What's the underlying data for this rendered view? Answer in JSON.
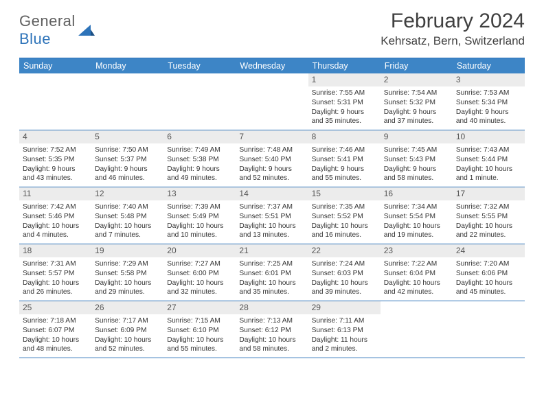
{
  "brand": {
    "part1": "General",
    "part2": "Blue"
  },
  "title": "February 2024",
  "location": "Kehrsatz, Bern, Switzerland",
  "colors": {
    "header_bar": "#3d85c6",
    "rule": "#2d73b9",
    "daynum_bg": "#ececec",
    "text": "#333333"
  },
  "weekdays": [
    "Sunday",
    "Monday",
    "Tuesday",
    "Wednesday",
    "Thursday",
    "Friday",
    "Saturday"
  ],
  "weeks": [
    [
      {
        "n": "",
        "sr": "",
        "ss": "",
        "dl": ""
      },
      {
        "n": "",
        "sr": "",
        "ss": "",
        "dl": ""
      },
      {
        "n": "",
        "sr": "",
        "ss": "",
        "dl": ""
      },
      {
        "n": "",
        "sr": "",
        "ss": "",
        "dl": ""
      },
      {
        "n": "1",
        "sr": "Sunrise: 7:55 AM",
        "ss": "Sunset: 5:31 PM",
        "dl": "Daylight: 9 hours and 35 minutes."
      },
      {
        "n": "2",
        "sr": "Sunrise: 7:54 AM",
        "ss": "Sunset: 5:32 PM",
        "dl": "Daylight: 9 hours and 37 minutes."
      },
      {
        "n": "3",
        "sr": "Sunrise: 7:53 AM",
        "ss": "Sunset: 5:34 PM",
        "dl": "Daylight: 9 hours and 40 minutes."
      }
    ],
    [
      {
        "n": "4",
        "sr": "Sunrise: 7:52 AM",
        "ss": "Sunset: 5:35 PM",
        "dl": "Daylight: 9 hours and 43 minutes."
      },
      {
        "n": "5",
        "sr": "Sunrise: 7:50 AM",
        "ss": "Sunset: 5:37 PM",
        "dl": "Daylight: 9 hours and 46 minutes."
      },
      {
        "n": "6",
        "sr": "Sunrise: 7:49 AM",
        "ss": "Sunset: 5:38 PM",
        "dl": "Daylight: 9 hours and 49 minutes."
      },
      {
        "n": "7",
        "sr": "Sunrise: 7:48 AM",
        "ss": "Sunset: 5:40 PM",
        "dl": "Daylight: 9 hours and 52 minutes."
      },
      {
        "n": "8",
        "sr": "Sunrise: 7:46 AM",
        "ss": "Sunset: 5:41 PM",
        "dl": "Daylight: 9 hours and 55 minutes."
      },
      {
        "n": "9",
        "sr": "Sunrise: 7:45 AM",
        "ss": "Sunset: 5:43 PM",
        "dl": "Daylight: 9 hours and 58 minutes."
      },
      {
        "n": "10",
        "sr": "Sunrise: 7:43 AM",
        "ss": "Sunset: 5:44 PM",
        "dl": "Daylight: 10 hours and 1 minute."
      }
    ],
    [
      {
        "n": "11",
        "sr": "Sunrise: 7:42 AM",
        "ss": "Sunset: 5:46 PM",
        "dl": "Daylight: 10 hours and 4 minutes."
      },
      {
        "n": "12",
        "sr": "Sunrise: 7:40 AM",
        "ss": "Sunset: 5:48 PM",
        "dl": "Daylight: 10 hours and 7 minutes."
      },
      {
        "n": "13",
        "sr": "Sunrise: 7:39 AM",
        "ss": "Sunset: 5:49 PM",
        "dl": "Daylight: 10 hours and 10 minutes."
      },
      {
        "n": "14",
        "sr": "Sunrise: 7:37 AM",
        "ss": "Sunset: 5:51 PM",
        "dl": "Daylight: 10 hours and 13 minutes."
      },
      {
        "n": "15",
        "sr": "Sunrise: 7:35 AM",
        "ss": "Sunset: 5:52 PM",
        "dl": "Daylight: 10 hours and 16 minutes."
      },
      {
        "n": "16",
        "sr": "Sunrise: 7:34 AM",
        "ss": "Sunset: 5:54 PM",
        "dl": "Daylight: 10 hours and 19 minutes."
      },
      {
        "n": "17",
        "sr": "Sunrise: 7:32 AM",
        "ss": "Sunset: 5:55 PM",
        "dl": "Daylight: 10 hours and 22 minutes."
      }
    ],
    [
      {
        "n": "18",
        "sr": "Sunrise: 7:31 AM",
        "ss": "Sunset: 5:57 PM",
        "dl": "Daylight: 10 hours and 26 minutes."
      },
      {
        "n": "19",
        "sr": "Sunrise: 7:29 AM",
        "ss": "Sunset: 5:58 PM",
        "dl": "Daylight: 10 hours and 29 minutes."
      },
      {
        "n": "20",
        "sr": "Sunrise: 7:27 AM",
        "ss": "Sunset: 6:00 PM",
        "dl": "Daylight: 10 hours and 32 minutes."
      },
      {
        "n": "21",
        "sr": "Sunrise: 7:25 AM",
        "ss": "Sunset: 6:01 PM",
        "dl": "Daylight: 10 hours and 35 minutes."
      },
      {
        "n": "22",
        "sr": "Sunrise: 7:24 AM",
        "ss": "Sunset: 6:03 PM",
        "dl": "Daylight: 10 hours and 39 minutes."
      },
      {
        "n": "23",
        "sr": "Sunrise: 7:22 AM",
        "ss": "Sunset: 6:04 PM",
        "dl": "Daylight: 10 hours and 42 minutes."
      },
      {
        "n": "24",
        "sr": "Sunrise: 7:20 AM",
        "ss": "Sunset: 6:06 PM",
        "dl": "Daylight: 10 hours and 45 minutes."
      }
    ],
    [
      {
        "n": "25",
        "sr": "Sunrise: 7:18 AM",
        "ss": "Sunset: 6:07 PM",
        "dl": "Daylight: 10 hours and 48 minutes."
      },
      {
        "n": "26",
        "sr": "Sunrise: 7:17 AM",
        "ss": "Sunset: 6:09 PM",
        "dl": "Daylight: 10 hours and 52 minutes."
      },
      {
        "n": "27",
        "sr": "Sunrise: 7:15 AM",
        "ss": "Sunset: 6:10 PM",
        "dl": "Daylight: 10 hours and 55 minutes."
      },
      {
        "n": "28",
        "sr": "Sunrise: 7:13 AM",
        "ss": "Sunset: 6:12 PM",
        "dl": "Daylight: 10 hours and 58 minutes."
      },
      {
        "n": "29",
        "sr": "Sunrise: 7:11 AM",
        "ss": "Sunset: 6:13 PM",
        "dl": "Daylight: 11 hours and 2 minutes."
      },
      {
        "n": "",
        "sr": "",
        "ss": "",
        "dl": ""
      },
      {
        "n": "",
        "sr": "",
        "ss": "",
        "dl": ""
      }
    ]
  ]
}
